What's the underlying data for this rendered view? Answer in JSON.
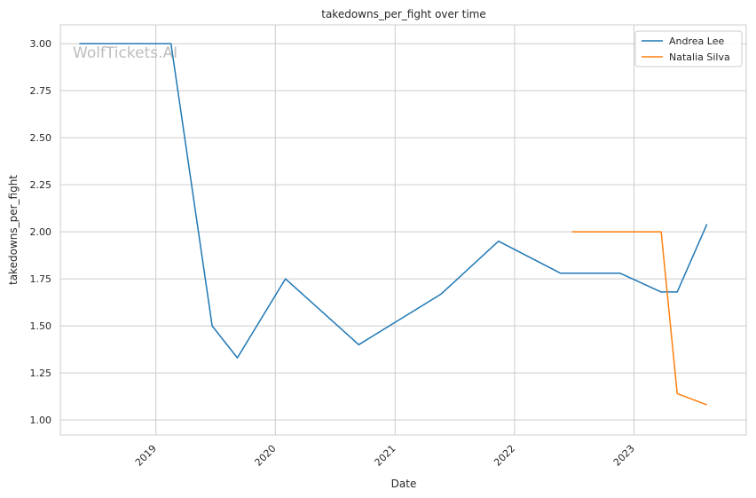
{
  "chart_data": {
    "type": "line",
    "title": "takedowns_per_fight over time",
    "xlabel": "Date",
    "ylabel": "takedowns_per_fight",
    "watermark": "WolfTickets.AI",
    "xlim": [
      "2018-03-15",
      "2023-12-10"
    ],
    "ylim": [
      0.92,
      3.1
    ],
    "x_ticks": [
      {
        "date": "2019-01-01",
        "label": "2019"
      },
      {
        "date": "2020-01-01",
        "label": "2020"
      },
      {
        "date": "2021-01-01",
        "label": "2021"
      },
      {
        "date": "2022-01-01",
        "label": "2022"
      },
      {
        "date": "2023-01-01",
        "label": "2023"
      }
    ],
    "y_ticks": [
      1.0,
      1.25,
      1.5,
      1.75,
      2.0,
      2.25,
      2.5,
      2.75,
      3.0
    ],
    "y_tick_labels": [
      "1.00",
      "1.25",
      "1.50",
      "1.75",
      "2.00",
      "2.25",
      "2.50",
      "2.75",
      "3.00"
    ],
    "grid": true,
    "legend_position": "top-right",
    "series": [
      {
        "name": "Andrea Lee",
        "color": "#1f77b4",
        "x": [
          "2018-05-12",
          "2019-02-16",
          "2019-06-22",
          "2019-09-07",
          "2020-02-01",
          "2020-09-12",
          "2021-05-22",
          "2021-11-13",
          "2022-05-21",
          "2022-11-19",
          "2023-03-25",
          "2023-05-13",
          "2023-08-12"
        ],
        "y": [
          3.0,
          3.0,
          1.5,
          1.33,
          1.75,
          1.4,
          1.67,
          1.95,
          1.78,
          1.78,
          1.68,
          1.68,
          2.04
        ]
      },
      {
        "name": "Natalia Silva",
        "color": "#ff7f0e",
        "x": [
          "2022-06-25",
          "2023-03-25",
          "2023-05-13",
          "2023-08-12"
        ],
        "y": [
          2.0,
          2.0,
          1.14,
          1.08
        ]
      }
    ]
  }
}
